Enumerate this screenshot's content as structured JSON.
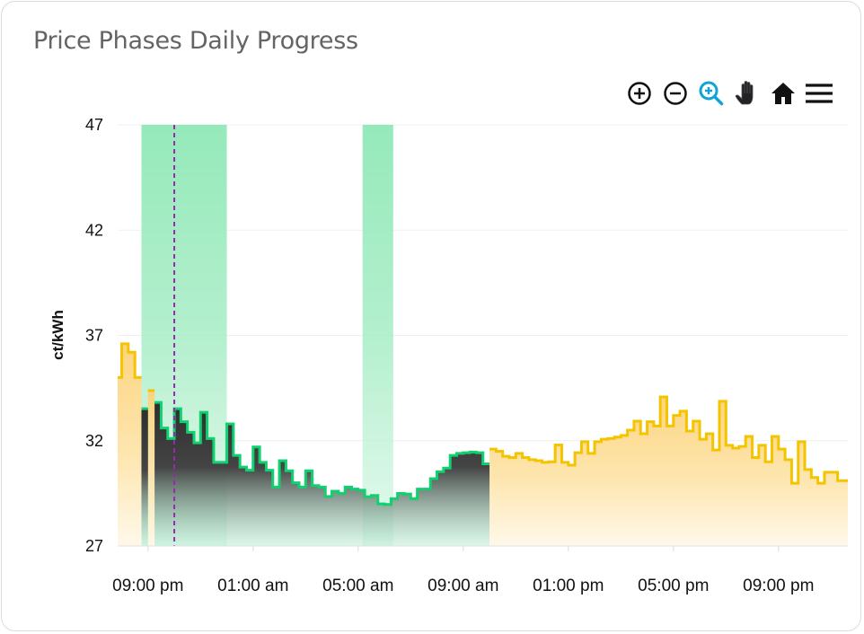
{
  "card": {
    "title": "Price Phases Daily Progress"
  },
  "toolbar": {
    "buttons": [
      {
        "icon": "zoom-in-icon",
        "active": false
      },
      {
        "icon": "zoom-out-icon",
        "active": false
      },
      {
        "icon": "selection-zoom-icon",
        "active": true
      },
      {
        "icon": "pan-hand-icon",
        "active": false
      },
      {
        "icon": "home-reset-icon",
        "active": false
      },
      {
        "icon": "menu-icon",
        "active": false
      }
    ],
    "active_color": "#0ea5d4"
  },
  "chart_data": {
    "type": "area",
    "step": true,
    "title": "",
    "xlabel": "",
    "ylabel": "ct/kWh",
    "ylim": [
      27,
      47
    ],
    "yticks": [
      "27",
      "32",
      "37",
      "42",
      "47"
    ],
    "xticks": [
      {
        "time": "21:00",
        "label": "09:00 pm"
      },
      {
        "time": "01:00",
        "label": "01:00 am"
      },
      {
        "time": "05:00",
        "label": "05:00 am"
      },
      {
        "time": "09:00",
        "label": "09:00 am"
      },
      {
        "time": "13:00",
        "label": "01:00 pm"
      },
      {
        "time": "17:00",
        "label": "05:00 pm"
      },
      {
        "time": "21:00",
        "label": "09:00 pm"
      }
    ],
    "x_range": [
      "19:52",
      "23:38"
    ],
    "grid": true,
    "start_time": "19:45",
    "interval_minutes": 15,
    "series": [
      {
        "color": "#f5c400",
        "fill": "#fcd581",
        "values": [
          35.0,
          36.6,
          36.2,
          35.0,
          null,
          34.38,
          null,
          null,
          null,
          null,
          null,
          null,
          null,
          null,
          null,
          null,
          null,
          null,
          null,
          null,
          null,
          null,
          null,
          null,
          null,
          null,
          null,
          null,
          null,
          null,
          null,
          null,
          null,
          null,
          null,
          null,
          null,
          null,
          null,
          null,
          null,
          null,
          null,
          null,
          null,
          null,
          null,
          null,
          null,
          null,
          null,
          null,
          null,
          null,
          null,
          null,
          null,
          31.6,
          31.5,
          31.26,
          31.2,
          31.4,
          31.2,
          31.1,
          31.05,
          30.97,
          31.0,
          31.8,
          30.97,
          30.84,
          31.43,
          31.95,
          31.4,
          31.95,
          32.07,
          32.1,
          32.17,
          32.25,
          32.5,
          32.93,
          32.33,
          32.9,
          32.7,
          34.08,
          32.7,
          33.2,
          33.4,
          32.46,
          32.93,
          32.07,
          32.33,
          31.56,
          33.87,
          31.78,
          31.65,
          31.73,
          32.2,
          31.2,
          31.78,
          31.0,
          32.2,
          31.6,
          31.1,
          29.98,
          31.95,
          30.63,
          30.25,
          29.98,
          30.5,
          30.5,
          30.1,
          30.1,
          29.4
        ]
      },
      {
        "color": "#10d070",
        "fill": "#3a3a3a",
        "values": [
          null,
          null,
          null,
          null,
          33.52,
          null,
          33.82,
          32.6,
          32.1,
          33.52,
          32.9,
          32.4,
          31.9,
          33.35,
          32.1,
          30.97,
          30.97,
          32.8,
          31.3,
          30.75,
          30.6,
          31.7,
          30.97,
          30.6,
          29.8,
          31.05,
          30.57,
          30.0,
          29.8,
          30.57,
          29.87,
          29.8,
          29.35,
          29.6,
          29.5,
          29.8,
          29.7,
          29.65,
          29.34,
          29.4,
          29.0,
          28.97,
          29.25,
          29.5,
          29.47,
          29.25,
          29.7,
          29.7,
          30.2,
          30.53,
          30.7,
          31.3,
          31.4,
          31.43,
          31.46,
          31.43,
          30.9
        ]
      }
    ],
    "highlight_bands": [
      {
        "from": "20:45",
        "to": "00:00",
        "color": "#8fe8b6"
      },
      {
        "from": "05:10",
        "to": "06:20",
        "color": "#8fe8b6"
      }
    ],
    "now_marker": {
      "time": "22:00",
      "color": "#9b27b0"
    }
  }
}
